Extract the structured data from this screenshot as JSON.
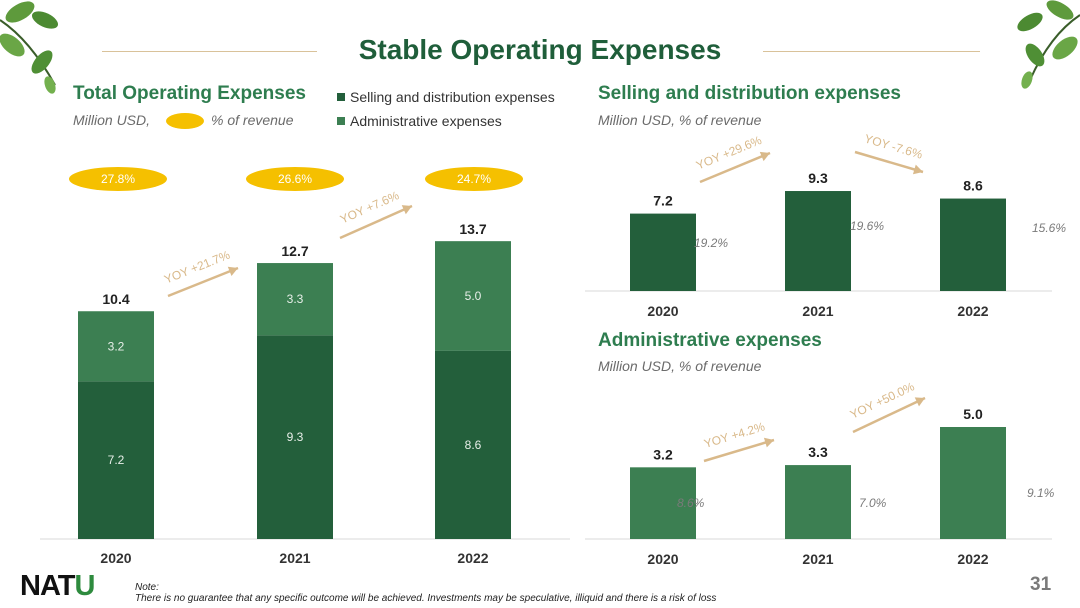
{
  "page": {
    "title": "Stable Operating Expenses",
    "page_number": "31",
    "logo": {
      "main": "NAT",
      "accent": "U"
    },
    "note_label": "Note:",
    "note_text": "There is no guarantee that any specific outcome will be achieved. Investments may be speculative, illiquid and there is a risk of loss"
  },
  "left": {
    "title": "Total Operating Expenses",
    "subtitle_a": "Million USD,",
    "subtitle_b": "% of revenue",
    "legend": [
      "Selling and distribution expenses",
      "Administrative expenses"
    ]
  },
  "right_top": {
    "title": "Selling and distribution expenses",
    "subtitle": "Million USD, % of revenue"
  },
  "right_bottom": {
    "title": "Administrative expenses",
    "subtitle": "Million USD, % of revenue"
  },
  "colors": {
    "dark_green": "#235f3b",
    "light_green": "#3c7f52",
    "gold": "#f5c000",
    "arrow": "#d9b98a",
    "title": "#1f5e3a"
  },
  "chart_data": [
    {
      "type": "bar",
      "stacked": true,
      "title": "Total Operating Expenses",
      "categories": [
        "2020",
        "2021",
        "2022"
      ],
      "series": [
        {
          "name": "Selling and distribution expenses",
          "values": [
            7.2,
            9.3,
            8.6
          ]
        },
        {
          "name": "Administrative expenses",
          "values": [
            3.2,
            3.3,
            5.0
          ]
        }
      ],
      "totals": [
        "10.4",
        "12.7",
        "13.7"
      ],
      "pct_of_revenue": [
        "27.8%",
        "26.6%",
        "24.7%"
      ],
      "yoy": [
        "YOY +21.7%",
        "YOY +7.6%"
      ],
      "ylim": [
        0,
        15
      ]
    },
    {
      "type": "bar",
      "title": "Selling and distribution expenses",
      "categories": [
        "2020",
        "2021",
        "2022"
      ],
      "values": [
        7.2,
        9.3,
        8.6
      ],
      "value_labels": [
        "7.2",
        "9.3",
        "8.6"
      ],
      "pct_of_revenue": [
        "19.2%",
        "19.6%",
        "15.6%"
      ],
      "yoy": [
        "YOY +29.6%",
        "YOY -7.6%"
      ],
      "ylim": [
        0,
        11
      ]
    },
    {
      "type": "bar",
      "title": "Administrative expenses",
      "categories": [
        "2020",
        "2021",
        "2022"
      ],
      "values": [
        3.2,
        3.3,
        5.0
      ],
      "value_labels": [
        "3.2",
        "3.3",
        "5.0"
      ],
      "pct_of_revenue": [
        "8.6%",
        "7.0%",
        "9.1%"
      ],
      "yoy": [
        "YOY +4.2%",
        "YOY +50.0%"
      ],
      "ylim": [
        0,
        6
      ]
    }
  ]
}
